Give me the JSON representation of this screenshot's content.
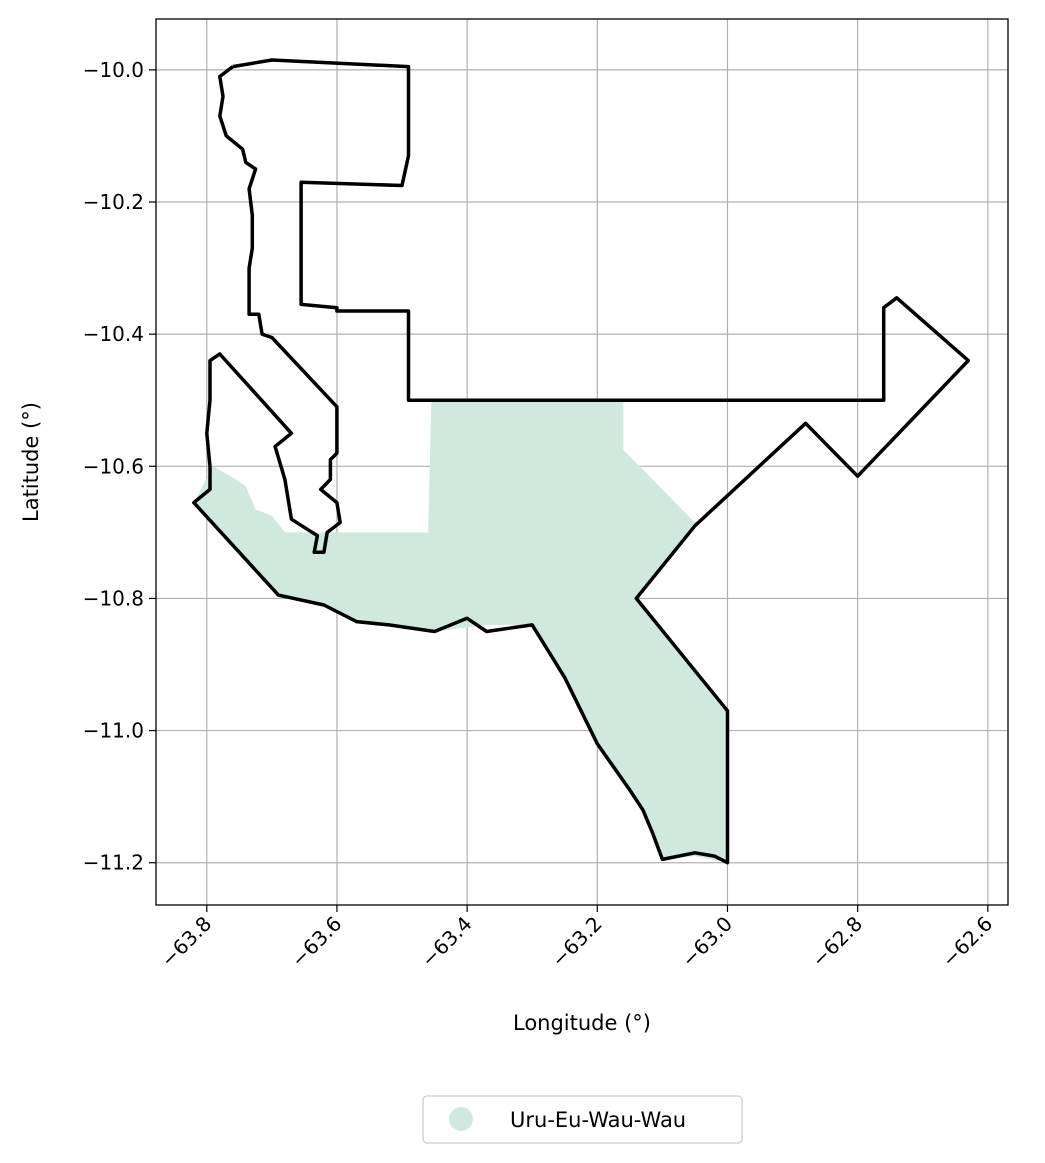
{
  "map": {
    "xlabel": "Longitude (°)",
    "ylabel": "Latitude (°)",
    "x_ticks": [
      -63.8,
      -63.6,
      -63.4,
      -63.2,
      -63.0,
      -62.8,
      -62.6
    ],
    "x_tick_labels": [
      "−63.8",
      "−63.6",
      "−63.4",
      "−63.2",
      "−63.0",
      "−62.8",
      "−62.6"
    ],
    "y_ticks": [
      -10.0,
      -10.2,
      -10.4,
      -10.6,
      -10.8,
      -11.0,
      -11.2
    ],
    "y_tick_labels": [
      "−10.0",
      "−10.2",
      "−10.4",
      "−10.6",
      "−10.8",
      "−11.0",
      "−11.2"
    ],
    "xlim": [
      -63.878,
      -62.569
    ],
    "ylim": [
      -11.264,
      -9.923
    ],
    "grid": true,
    "legend": {
      "placement": "bottom-center",
      "entries": [
        {
          "label": "Uru-Eu-Wau-Wau",
          "color": "#cfeadd"
        }
      ]
    },
    "colors": {
      "fill": "#cfeadd",
      "boundary": "#000000",
      "grid": "#b0b0b0"
    },
    "fill_polygon": [
      [
        -63.82,
        -10.655
      ],
      [
        -63.79,
        -10.6
      ],
      [
        -63.755,
        -10.62
      ],
      [
        -63.74,
        -10.63
      ],
      [
        -63.725,
        -10.665
      ],
      [
        -63.7,
        -10.675
      ],
      [
        -63.68,
        -10.7
      ],
      [
        -63.46,
        -10.7
      ],
      [
        -63.455,
        -10.5
      ],
      [
        -63.16,
        -10.5
      ],
      [
        -63.16,
        -10.575
      ],
      [
        -63.05,
        -10.685
      ],
      [
        -63.14,
        -10.8
      ],
      [
        -63.0,
        -10.97
      ],
      [
        -63.0,
        -11.2
      ],
      [
        -63.05,
        -11.19
      ],
      [
        -63.1,
        -11.195
      ],
      [
        -63.13,
        -11.12
      ],
      [
        -63.2,
        -11.02
      ],
      [
        -63.25,
        -10.92
      ],
      [
        -63.3,
        -10.84
      ],
      [
        -63.37,
        -10.84
      ],
      [
        -63.45,
        -10.85
      ],
      [
        -63.52,
        -10.84
      ],
      [
        -63.57,
        -10.835
      ],
      [
        -63.62,
        -10.81
      ],
      [
        -63.69,
        -10.795
      ]
    ],
    "outer_boundary": [
      [
        -63.76,
        -9.995
      ],
      [
        -63.78,
        -10.01
      ],
      [
        -63.775,
        -10.04
      ],
      [
        -63.78,
        -10.07
      ],
      [
        -63.77,
        -10.1
      ],
      [
        -63.745,
        -10.12
      ],
      [
        -63.74,
        -10.14
      ],
      [
        -63.725,
        -10.15
      ],
      [
        -63.735,
        -10.18
      ],
      [
        -63.73,
        -10.22
      ],
      [
        -63.73,
        -10.27
      ],
      [
        -63.735,
        -10.3
      ],
      [
        -63.735,
        -10.33
      ],
      [
        -63.735,
        -10.37
      ],
      [
        -63.72,
        -10.37
      ],
      [
        -63.715,
        -10.4
      ],
      [
        -63.7,
        -10.405
      ],
      [
        -63.6,
        -10.51
      ],
      [
        -63.6,
        -10.58
      ],
      [
        -63.61,
        -10.59
      ],
      [
        -63.61,
        -10.62
      ],
      [
        -63.625,
        -10.635
      ],
      [
        -63.6,
        -10.655
      ],
      [
        -63.595,
        -10.685
      ],
      [
        -63.615,
        -10.7
      ],
      [
        -63.62,
        -10.73
      ],
      [
        -63.635,
        -10.73
      ],
      [
        -63.63,
        -10.705
      ],
      [
        -63.67,
        -10.68
      ],
      [
        -63.68,
        -10.62
      ],
      [
        -63.695,
        -10.57
      ],
      [
        -63.67,
        -10.55
      ],
      [
        -63.78,
        -10.43
      ],
      [
        -63.795,
        -10.44
      ],
      [
        -63.795,
        -10.5
      ],
      [
        -63.8,
        -10.55
      ],
      [
        -63.795,
        -10.6
      ],
      [
        -63.795,
        -10.635
      ],
      [
        -63.82,
        -10.655
      ],
      [
        -63.69,
        -10.795
      ],
      [
        -63.62,
        -10.81
      ],
      [
        -63.57,
        -10.835
      ],
      [
        -63.52,
        -10.84
      ],
      [
        -63.45,
        -10.85
      ],
      [
        -63.4,
        -10.83
      ],
      [
        -63.37,
        -10.85
      ],
      [
        -63.3,
        -10.84
      ],
      [
        -63.25,
        -10.92
      ],
      [
        -63.2,
        -11.02
      ],
      [
        -63.15,
        -11.09
      ],
      [
        -63.13,
        -11.12
      ],
      [
        -63.115,
        -11.155
      ],
      [
        -63.1,
        -11.195
      ],
      [
        -63.05,
        -11.185
      ],
      [
        -63.02,
        -11.19
      ],
      [
        -63.0,
        -11.2
      ],
      [
        -63.0,
        -10.97
      ],
      [
        -63.14,
        -10.8
      ],
      [
        -63.05,
        -10.69
      ],
      [
        -62.88,
        -10.535
      ],
      [
        -62.8,
        -10.615
      ],
      [
        -62.63,
        -10.44
      ],
      [
        -62.74,
        -10.345
      ],
      [
        -62.76,
        -10.36
      ],
      [
        -62.76,
        -10.5
      ],
      [
        -63.49,
        -10.5
      ],
      [
        -63.49,
        -10.365
      ],
      [
        -63.6,
        -10.365
      ],
      [
        -63.6,
        -10.36
      ],
      [
        -63.655,
        -10.355
      ],
      [
        -63.655,
        -10.17
      ],
      [
        -63.5,
        -10.175
      ],
      [
        -63.49,
        -10.13
      ],
      [
        -63.49,
        -9.995
      ],
      [
        -63.7,
        -9.985
      ]
    ]
  }
}
